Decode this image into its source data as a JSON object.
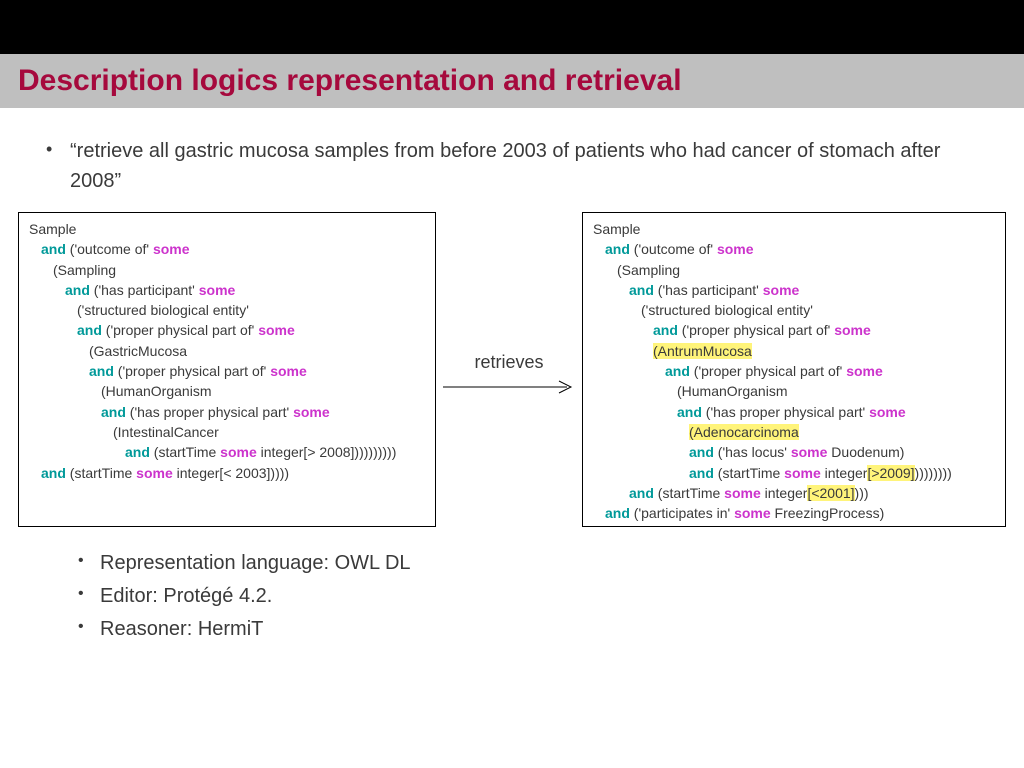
{
  "colors": {
    "black_bar": "#000000",
    "title_bg": "#bfbfbf",
    "title_text": "#a6093d",
    "body_text": "#3a3a3a",
    "kw_and": "#009999",
    "kw_some": "#cc33cc",
    "highlight": "#fff47a"
  },
  "title": "Description logics representation and retrieval",
  "query_sentence": "“retrieve all gastric mucosa samples from before 2003 of patients who had cancer of stomach after 2008”",
  "arrow_label": "retrieves",
  "left_code": {
    "lines": [
      {
        "indent": 0,
        "tokens": [
          {
            "t": "Sample"
          }
        ]
      },
      {
        "indent": 1,
        "tokens": [
          {
            "t": "and",
            "kw": "and"
          },
          {
            "t": " ('outcome of' "
          },
          {
            "t": "some",
            "kw": "some"
          }
        ]
      },
      {
        "indent": 2,
        "tokens": [
          {
            "t": "(Sampling"
          }
        ]
      },
      {
        "indent": 3,
        "tokens": [
          {
            "t": "and",
            "kw": "and"
          },
          {
            "t": " ('has participant' "
          },
          {
            "t": "some",
            "kw": "some"
          }
        ]
      },
      {
        "indent": 4,
        "tokens": [
          {
            "t": "('structured biological entity'"
          }
        ]
      },
      {
        "indent": 4,
        "tokens": [
          {
            "t": "and",
            "kw": "and"
          },
          {
            "t": " ('proper physical part of' "
          },
          {
            "t": "some",
            "kw": "some"
          }
        ]
      },
      {
        "indent": 5,
        "tokens": [
          {
            "t": "(GastricMucosa"
          }
        ]
      },
      {
        "indent": 5,
        "tokens": [
          {
            "t": "and",
            "kw": "and"
          },
          {
            "t": " ('proper physical part of' "
          },
          {
            "t": "some",
            "kw": "some"
          }
        ]
      },
      {
        "indent": 6,
        "tokens": [
          {
            "t": "(HumanOrganism"
          }
        ]
      },
      {
        "indent": 6,
        "tokens": [
          {
            "t": "and",
            "kw": "and"
          },
          {
            "t": " ('has proper physical part' "
          },
          {
            "t": "some",
            "kw": "some"
          }
        ]
      },
      {
        "indent": 7,
        "tokens": [
          {
            "t": "(IntestinalCancer"
          }
        ]
      },
      {
        "indent": 8,
        "tokens": [
          {
            "t": "and",
            "kw": "and"
          },
          {
            "t": " (startTime "
          },
          {
            "t": "some",
            "kw": "some"
          },
          {
            "t": " integer[> 2008])))))))))"
          }
        ]
      },
      {
        "indent": 1,
        "tokens": [
          {
            "t": "and",
            "kw": "and"
          },
          {
            "t": " (startTime "
          },
          {
            "t": "some",
            "kw": "some"
          },
          {
            "t": " integer[< 2003]))))"
          }
        ]
      }
    ]
  },
  "right_code": {
    "lines": [
      {
        "indent": 0,
        "tokens": [
          {
            "t": "Sample"
          }
        ]
      },
      {
        "indent": 1,
        "tokens": [
          {
            "t": "and",
            "kw": "and"
          },
          {
            "t": " ('outcome of' "
          },
          {
            "t": "some",
            "kw": "some"
          }
        ]
      },
      {
        "indent": 2,
        "tokens": [
          {
            "t": "(Sampling"
          }
        ]
      },
      {
        "indent": 3,
        "tokens": [
          {
            "t": "and",
            "kw": "and"
          },
          {
            "t": " ('has participant' "
          },
          {
            "t": "some",
            "kw": "some"
          }
        ]
      },
      {
        "indent": 4,
        "tokens": [
          {
            "t": "('structured biological entity'"
          }
        ]
      },
      {
        "indent": 5,
        "tokens": [
          {
            "t": "and",
            "kw": "and"
          },
          {
            "t": " ('proper physical part of' "
          },
          {
            "t": "some",
            "kw": "some"
          }
        ]
      },
      {
        "indent": 5,
        "tokens": [
          {
            "t": "(AntrumMucosa",
            "hl": true
          }
        ]
      },
      {
        "indent": 6,
        "tokens": [
          {
            "t": "and",
            "kw": "and"
          },
          {
            "t": " ('proper physical part of' "
          },
          {
            "t": "some",
            "kw": "some"
          }
        ]
      },
      {
        "indent": 7,
        "tokens": [
          {
            "t": "(HumanOrganism"
          }
        ]
      },
      {
        "indent": 7,
        "tokens": [
          {
            "t": "and",
            "kw": "and"
          },
          {
            "t": " ('has proper physical part' "
          },
          {
            "t": "some",
            "kw": "some"
          }
        ]
      },
      {
        "indent": 8,
        "tokens": [
          {
            "t": "(Adenocarcinoma",
            "hl": true
          }
        ]
      },
      {
        "indent": 8,
        "tokens": [
          {
            "t": "and",
            "kw": "and"
          },
          {
            "t": " ('has locus' "
          },
          {
            "t": "some",
            "kw": "some"
          },
          {
            "t": " Duodenum)"
          }
        ]
      },
      {
        "indent": 8,
        "tokens": [
          {
            "t": "and",
            "kw": "and"
          },
          {
            "t": " (startTime "
          },
          {
            "t": "some",
            "kw": "some"
          },
          {
            "t": " integer"
          },
          {
            "t": "[>2009]",
            "hl": true
          },
          {
            "t": "))))))))"
          }
        ]
      },
      {
        "indent": 3,
        "tokens": [
          {
            "t": "and",
            "kw": "and"
          },
          {
            "t": " (startTime "
          },
          {
            "t": "some",
            "kw": "some"
          },
          {
            "t": " integer"
          },
          {
            "t": "[<2001]",
            "hl": true
          },
          {
            "t": ")))"
          }
        ]
      },
      {
        "indent": 1,
        "tokens": [
          {
            "t": "and",
            "kw": "and"
          },
          {
            "t": " ('participates in' "
          },
          {
            "t": "some",
            "kw": "some"
          },
          {
            "t": " FreezingProcess)"
          }
        ]
      }
    ]
  },
  "footer_bullets": [
    "Representation language: OWL DL",
    "Editor: Protégé 4.2.",
    "Reasoner: HermiT"
  ]
}
